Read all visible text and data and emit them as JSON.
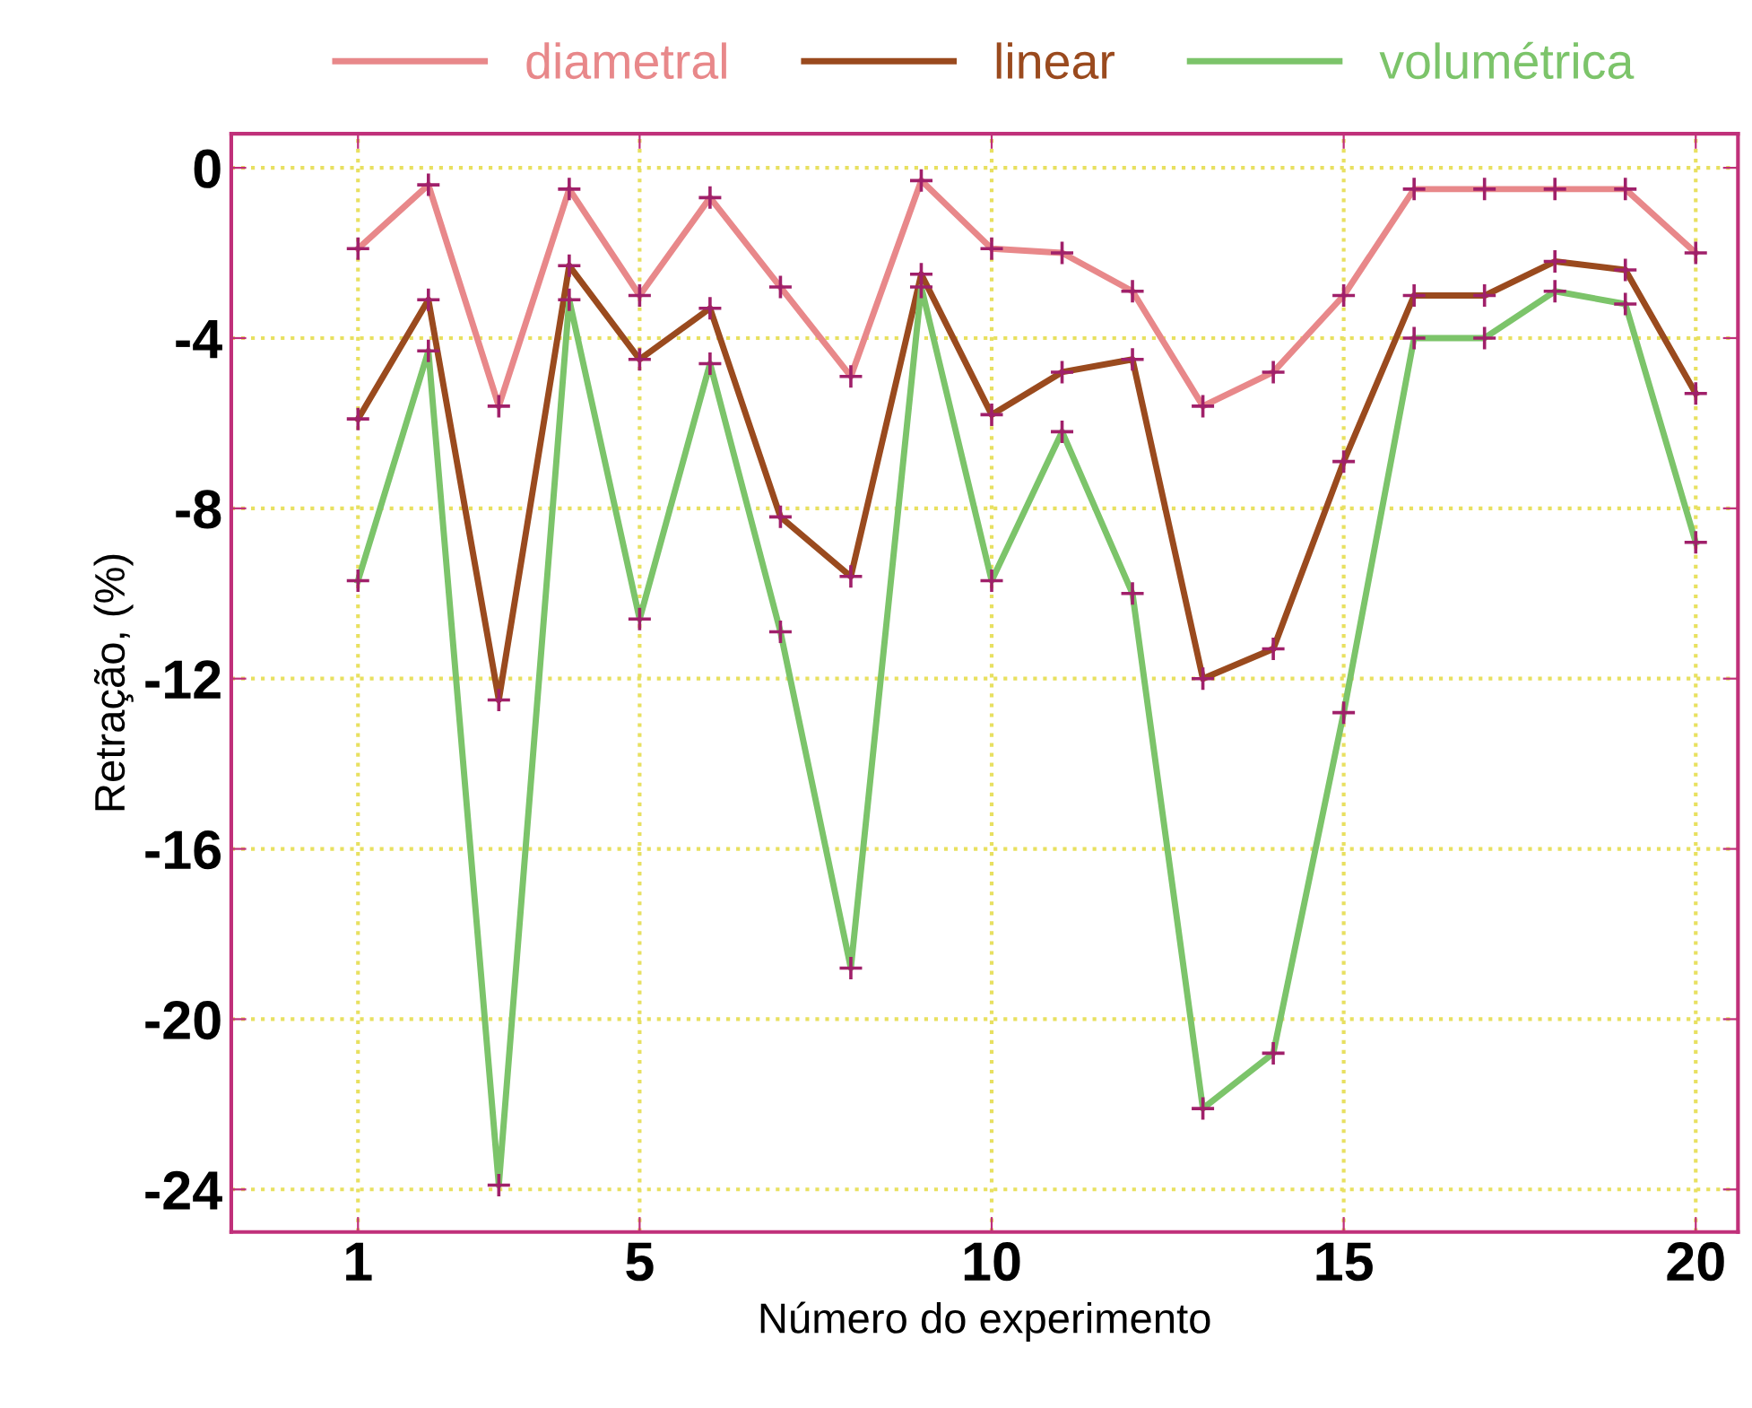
{
  "chart_data": {
    "type": "line",
    "xlabel": "Número do experimento",
    "ylabel": "Retração, (%)",
    "x": [
      1,
      2,
      3,
      4,
      5,
      6,
      7,
      8,
      9,
      10,
      11,
      12,
      13,
      14,
      15,
      16,
      17,
      18,
      19,
      20
    ],
    "series": [
      {
        "name": "diametral",
        "color": "#e8888a",
        "values": [
          -1.9,
          -0.4,
          -5.6,
          -0.5,
          -3.0,
          -0.7,
          -2.8,
          -4.9,
          -0.3,
          -1.9,
          -2.0,
          -2.9,
          -5.6,
          -4.8,
          -3.0,
          -0.5,
          -0.5,
          -0.5,
          -0.5,
          -2.0
        ]
      },
      {
        "name": "linear",
        "color": "#9a4a1e",
        "values": [
          -5.9,
          -3.1,
          -12.5,
          -2.3,
          -4.5,
          -3.3,
          -8.2,
          -9.6,
          -2.5,
          -5.8,
          -4.8,
          -4.5,
          -12.0,
          -11.3,
          -6.9,
          -3.0,
          -3.0,
          -2.2,
          -2.4,
          -5.3
        ]
      },
      {
        "name": "volumétrica",
        "color": "#7cc46a",
        "values": [
          -9.7,
          -4.3,
          -23.9,
          -3.1,
          -10.6,
          -4.6,
          -10.9,
          -18.8,
          -2.8,
          -9.7,
          -6.2,
          -10.0,
          -22.1,
          -20.8,
          -12.8,
          -4.0,
          -4.0,
          -2.9,
          -3.2,
          -8.8
        ]
      }
    ],
    "xlim": [
      -0.8,
      20.6
    ],
    "xticks": [
      1,
      5,
      10,
      15,
      20
    ],
    "ylim": [
      -25,
      0.8
    ],
    "yticks": [
      0,
      -4,
      -8,
      -12,
      -16,
      -20,
      -24
    ],
    "grid": true,
    "legend": "top",
    "marker": "cross",
    "line_style": "solid"
  }
}
